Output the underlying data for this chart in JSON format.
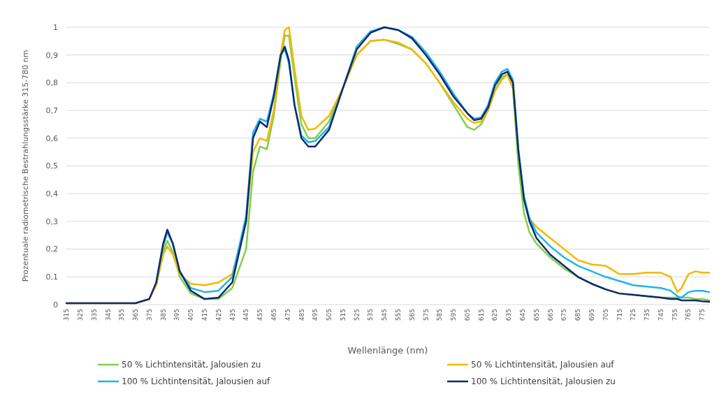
{
  "chart_data": {
    "type": "line",
    "xlabel": "Wellenlänge (nm)",
    "ylabel": "Prozentuale radiometrische Bestrahlungsstärke  315-780 nm",
    "x": [
      315,
      365,
      375,
      380,
      385,
      388,
      392,
      397,
      405,
      415,
      425,
      435,
      445,
      450,
      455,
      460,
      465,
      470,
      473,
      476,
      480,
      485,
      490,
      495,
      505,
      515,
      525,
      535,
      545,
      555,
      565,
      575,
      585,
      595,
      605,
      610,
      615,
      620,
      625,
      630,
      634,
      638,
      642,
      646,
      650,
      655,
      665,
      675,
      685,
      695,
      705,
      715,
      725,
      735,
      745,
      752,
      757,
      760,
      765,
      770,
      775,
      780
    ],
    "xlim": [
      315,
      780
    ],
    "xticks": [
      315,
      325,
      335,
      345,
      355,
      365,
      375,
      385,
      395,
      405,
      415,
      425,
      435,
      445,
      455,
      465,
      475,
      485,
      495,
      505,
      515,
      525,
      535,
      545,
      555,
      565,
      575,
      585,
      595,
      605,
      615,
      625,
      635,
      645,
      655,
      665,
      675,
      685,
      695,
      705,
      715,
      725,
      735,
      745,
      755,
      765,
      775
    ],
    "ylim": [
      0,
      1
    ],
    "yticks": [
      0,
      {
        "value": 0.1,
        "label": "0,1"
      },
      {
        "value": 0.2,
        "label": "0,2"
      },
      {
        "value": 0.3,
        "label": "0,3"
      },
      {
        "value": 0.4,
        "label": "0,4"
      },
      {
        "value": 0.5,
        "label": "0,5"
      },
      {
        "value": 0.6,
        "label": "0,6"
      },
      {
        "value": 0.7,
        "label": "0,7"
      },
      {
        "value": 0.8,
        "label": "0,8"
      },
      {
        "value": 0.9,
        "label": "0,9"
      },
      1
    ],
    "grid": "y",
    "legend": "bottom",
    "line_style": "solid",
    "series": [
      {
        "name": "50 % Lichtintensität, Jalousien zu",
        "color": "#7ed04b",
        "values": [
          null,
          null,
          null,
          0.07,
          0.19,
          0.23,
          0.19,
          0.1,
          0.04,
          0.02,
          0.02,
          0.06,
          0.2,
          0.48,
          0.57,
          0.56,
          0.68,
          0.88,
          0.97,
          0.97,
          0.82,
          0.65,
          0.6,
          0.6,
          0.66,
          0.78,
          0.9,
          0.95,
          0.955,
          0.94,
          0.92,
          0.87,
          0.8,
          0.72,
          0.64,
          0.63,
          0.65,
          0.7,
          0.77,
          0.82,
          0.83,
          0.78,
          0.5,
          0.33,
          0.26,
          0.22,
          0.17,
          0.13,
          0.1,
          0.075,
          0.055,
          0.04,
          0.035,
          0.03,
          0.025,
          0.025,
          0.025,
          0.025,
          0.025,
          0.02,
          0.02,
          0.015
        ]
      },
      {
        "name": "50 % Lichtintensität, Jalousien auf",
        "color": "#f5b800",
        "values": [
          0.005,
          0.005,
          0.02,
          0.07,
          0.18,
          0.21,
          0.18,
          0.11,
          0.075,
          0.07,
          0.08,
          0.11,
          0.3,
          0.55,
          0.6,
          0.59,
          0.7,
          0.9,
          0.99,
          1.0,
          0.85,
          0.68,
          0.63,
          0.635,
          0.68,
          0.78,
          0.9,
          0.95,
          0.955,
          0.945,
          0.92,
          0.87,
          0.8,
          0.73,
          0.67,
          0.655,
          0.66,
          0.7,
          0.77,
          0.81,
          0.83,
          0.78,
          0.55,
          0.38,
          0.31,
          0.28,
          0.24,
          0.2,
          0.16,
          0.145,
          0.14,
          0.11,
          0.11,
          0.115,
          0.115,
          0.1,
          0.045,
          0.06,
          0.11,
          0.12,
          0.115,
          0.115
        ]
      },
      {
        "name": "100 % Lichtintensität, Jalousien auf",
        "color": "#1fb4ec",
        "values": [
          null,
          null,
          null,
          0.08,
          0.21,
          0.26,
          0.22,
          0.12,
          0.06,
          0.045,
          0.05,
          0.1,
          0.32,
          0.62,
          0.67,
          0.66,
          0.76,
          0.9,
          0.92,
          0.87,
          0.72,
          0.61,
          0.585,
          0.59,
          0.64,
          0.78,
          0.93,
          0.985,
          1.0,
          0.99,
          0.965,
          0.91,
          0.84,
          0.76,
          0.69,
          0.67,
          0.675,
          0.72,
          0.8,
          0.84,
          0.85,
          0.81,
          0.56,
          0.39,
          0.31,
          0.26,
          0.21,
          0.17,
          0.14,
          0.12,
          0.1,
          0.085,
          0.07,
          0.065,
          0.06,
          0.05,
          0.03,
          0.025,
          0.045,
          0.05,
          0.05,
          0.045
        ]
      },
      {
        "name": "100 % Lichtintensität, Jalousien zu",
        "color": "#0d2a6e",
        "values": [
          0.005,
          0.005,
          0.02,
          0.08,
          0.22,
          0.27,
          0.22,
          0.12,
          0.05,
          0.02,
          0.025,
          0.08,
          0.3,
          0.6,
          0.66,
          0.64,
          0.75,
          0.9,
          0.93,
          0.88,
          0.72,
          0.6,
          0.57,
          0.57,
          0.63,
          0.78,
          0.92,
          0.98,
          1.0,
          0.99,
          0.96,
          0.9,
          0.83,
          0.75,
          0.69,
          0.665,
          0.67,
          0.71,
          0.79,
          0.83,
          0.84,
          0.8,
          0.55,
          0.38,
          0.3,
          0.24,
          0.18,
          0.14,
          0.1,
          0.075,
          0.055,
          0.04,
          0.035,
          0.03,
          0.025,
          0.02,
          0.02,
          0.015,
          0.015,
          0.015,
          0.012,
          0.01
        ]
      }
    ]
  }
}
